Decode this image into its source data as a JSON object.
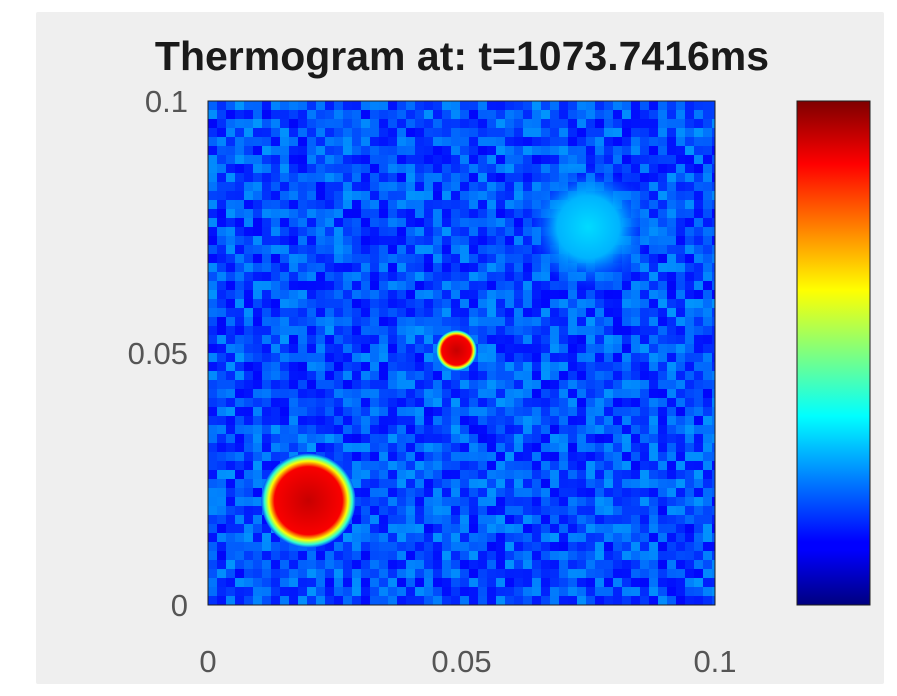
{
  "chart_data": {
    "type": "heatmap",
    "title": "Thermogram at: t=1073.7416ms",
    "xlabel": "",
    "ylabel": "",
    "xlim": [
      0,
      0.1
    ],
    "ylim": [
      0,
      0.1
    ],
    "x_ticks": [
      "0",
      "0.05",
      "0.1"
    ],
    "y_ticks": [
      "0",
      "0.05",
      "0.1"
    ],
    "colormap": "jet",
    "background_level": 0.2,
    "hot_spots": [
      {
        "x": 0.0198,
        "y": 0.0207,
        "radius": 0.0083,
        "level": 0.93
      },
      {
        "x": 0.049,
        "y": 0.0505,
        "radius": 0.0036,
        "level": 0.93
      },
      {
        "x": 0.075,
        "y": 0.075,
        "radius": 0.011,
        "level": 0.34
      }
    ],
    "colorbar": {
      "placement": "right",
      "tick_labels": []
    }
  }
}
